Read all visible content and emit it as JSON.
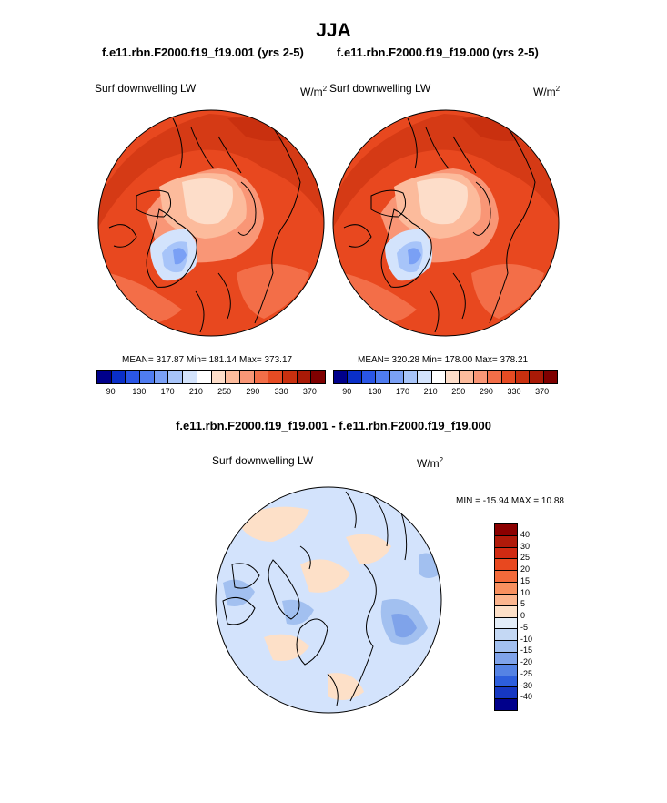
{
  "title": "JJA",
  "panels": [
    {
      "case": "f.e11.rbn.F2000.f19_f19.001 (yrs 2-5)",
      "variable": "Surf downwelling LW",
      "unit": "W/m",
      "unit_exp": "2",
      "stats": "MEAN= 317.87  Min= 181.14  Max= 373.17"
    },
    {
      "case": "f.e11.rbn.F2000.f19_f19.000 (yrs 2-5)",
      "variable": "Surf downwelling LW",
      "unit": "W/m",
      "unit_exp": "2",
      "stats": "MEAN= 320.28  Min= 178.00  Max= 378.21"
    }
  ],
  "top_colorbar": {
    "labels": [
      "90",
      "130",
      "170",
      "210",
      "250",
      "290",
      "330",
      "370"
    ],
    "colors": [
      "#00008b",
      "#0a2fc8",
      "#2a56e6",
      "#4f7cf0",
      "#7aa0f5",
      "#a7c4f9",
      "#d3e3fc",
      "#ffffff",
      "#fdddc9",
      "#fcbb9c",
      "#f99676",
      "#f36e48",
      "#e64b23",
      "#c9300f",
      "#a91a07",
      "#7f0000"
    ]
  },
  "difference": {
    "title": "f.e11.rbn.F2000.f19_f19.001 - f.e11.rbn.F2000.f19_f19.000",
    "variable": "Surf downwelling LW",
    "unit": "W/m",
    "unit_exp": "2",
    "stats": "MIN = -15.94 MAX =  10.88",
    "levels": [
      "40",
      "30",
      "25",
      "20",
      "15",
      "10",
      "5",
      "0",
      "-5",
      "-10",
      "-15",
      "-20",
      "-25",
      "-30",
      "-40"
    ],
    "colors": [
      "#8b0000",
      "#b01a0a",
      "#d12a12",
      "#e8481f",
      "#f36a3a",
      "#f8905f",
      "#fcb58e",
      "#fde0c8",
      "#e3edf8",
      "#c4d8f4",
      "#a2c0f0",
      "#7fa3ea",
      "#5583e4",
      "#2d5fdd",
      "#1638c2",
      "#00008b"
    ]
  }
}
